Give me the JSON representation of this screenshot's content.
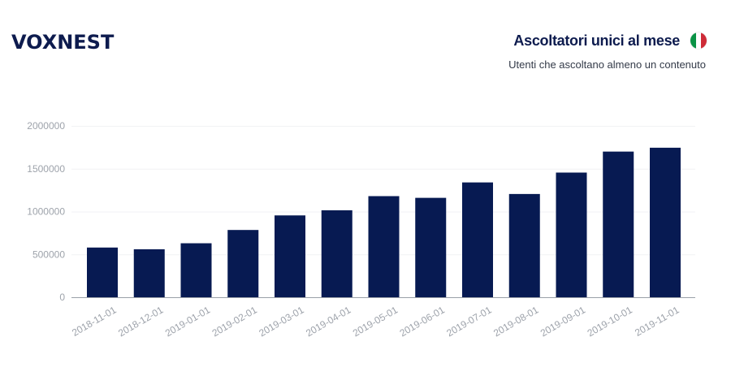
{
  "header": {
    "logo": "VOXNEST",
    "title": "Ascoltatori unici al mese",
    "subtitle": "Utenti che ascoltano almeno un contenuto",
    "flag_colors": [
      "#0a9345",
      "#ffffff",
      "#ce2b37"
    ]
  },
  "colors": {
    "bar": "#071a52"
  },
  "chart_data": {
    "type": "bar",
    "title": "Ascoltatori unici al mese",
    "subtitle": "Utenti che ascoltano almeno un contenuto",
    "categories": [
      "2018-11-01",
      "2018-12-01",
      "2019-01-01",
      "2019-02-01",
      "2019-03-01",
      "2019-04-01",
      "2019-05-01",
      "2019-06-01",
      "2019-07-01",
      "2019-08-01",
      "2019-09-01",
      "2019-10-01",
      "2019-11-01"
    ],
    "values": [
      580000,
      560000,
      630000,
      785000,
      955000,
      1015000,
      1180000,
      1160000,
      1340000,
      1205000,
      1455000,
      1700000,
      1745000
    ],
    "y_ticks": [
      "0",
      "500000",
      "1000000",
      "1500000",
      "2000000"
    ],
    "ylim": [
      0,
      2000000
    ],
    "xlabel": "",
    "ylabel": "",
    "grid": true
  }
}
